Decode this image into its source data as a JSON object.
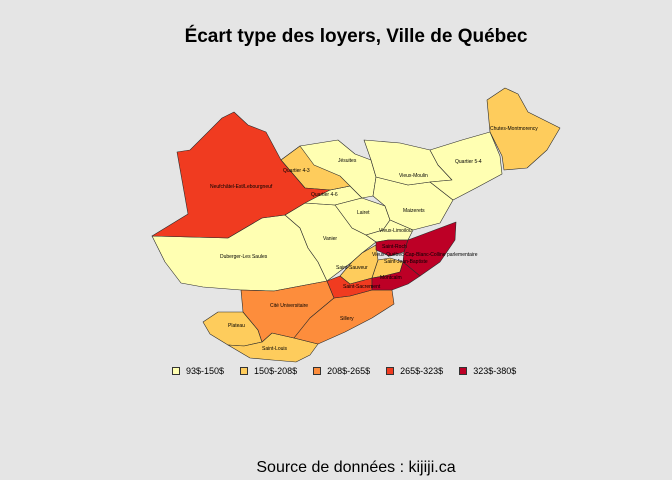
{
  "title": "Écart type des loyers, Ville de Québec",
  "source": "Source de données : kijiji.ca",
  "colors": {
    "class1": "#ffffb2",
    "class2": "#fecc5c",
    "class3": "#fd8d3c",
    "class4": "#f03b20",
    "class5": "#bd0026"
  },
  "legend": [
    {
      "label": "93$-150$",
      "color": "#ffffb2"
    },
    {
      "label": "150$-208$",
      "color": "#fecc5c"
    },
    {
      "label": "208$-265$",
      "color": "#fd8d3c"
    },
    {
      "label": "265$-323$",
      "color": "#f03b20"
    },
    {
      "label": "323$-380$",
      "color": "#bd0026"
    }
  ],
  "districts": {
    "neufchatel": "Neufchâtel-Est/Lebourgneuf",
    "quartier_4_3": "Quartier 4-3",
    "jesuites": "Jésuites",
    "quartier_5_4": "Quartier 5-4",
    "chutes": "Chutes-Montmorency",
    "vieux_moulin": "Vieux-Moulin",
    "quartier_4_6": "Quartier 4-6",
    "maizerets": "Maizerets",
    "lairet": "Lairet",
    "vanier": "Vanier",
    "vieux_limoilou": "Vieux-Limoilou",
    "duberger": "Duberger-Les Saules",
    "saint_roch": "Saint-Roch",
    "vieux_quebec": "Vieux-Québec-Cap-Blanc-Colline parlementaire",
    "saint_jean": "Saint-Jean-Baptiste",
    "saint_sauveur": "Saint-Sauveur",
    "montcalm": "Montcalm",
    "saint_sacrement": "Saint-Sacrement",
    "cite_universitaire": "Cité Universitaire",
    "sillery": "Sillery",
    "plateau": "Plateau",
    "saint_louis": "Saint-Louis"
  }
}
